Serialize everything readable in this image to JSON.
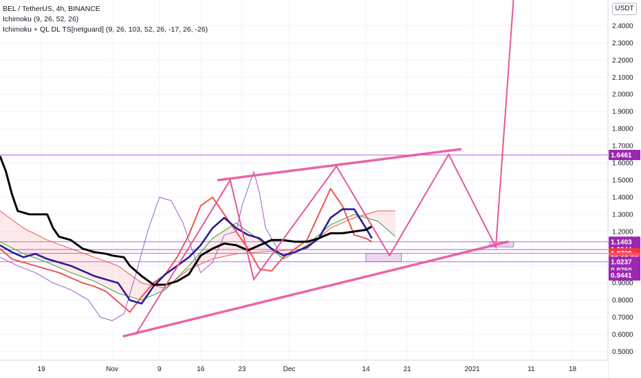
{
  "legend": {
    "symbol": "BEL / TetherUS, 4h, BINANCE",
    "indicator1": "Ichimoku (9, 26, 52, 26)",
    "indicator2": "Ichimoku + QL DL TS[netguard] (9, 26, 103, 52, 26, -17, 26, -26)"
  },
  "currency_label": "USDT",
  "colors": {
    "pattern_pink": "#e8559a",
    "level_purple": "#b46ad6",
    "tag_purple": "#9c27b0",
    "tag_red": "#f23645",
    "tag_orange": "#f7525f",
    "cloud_green": "#3a9a3a",
    "cloud_red": "#ef5350",
    "kijun_navy": "#2b1a99",
    "lagging_violet": "#9b59d0",
    "base_black": "#000000"
  },
  "chart_data": {
    "type": "line",
    "y_ticks": [
      "2.4000",
      "2.3000",
      "2.2000",
      "2.1000",
      "2.0000",
      "1.9000",
      "1.8000",
      "1.7000",
      "1.6000",
      "1.5000",
      "1.4000",
      "1.3000",
      "1.2000",
      "1.1000",
      "1.0000",
      "0.9000",
      "0.8000",
      "0.7000",
      "0.6000",
      "0.5000"
    ],
    "y_tick_values": [
      2.4,
      2.3,
      2.2,
      2.1,
      2.0,
      1.9,
      1.8,
      1.7,
      1.6,
      1.5,
      1.4,
      1.3,
      1.2,
      1.1,
      1.0,
      0.9,
      0.8,
      0.7,
      0.6,
      0.5
    ],
    "x_ticks": [
      "19",
      "Nov",
      "9",
      "16",
      "23",
      "Dec",
      "14",
      "21",
      "2021",
      "11",
      "18"
    ],
    "x_tick_days": [
      -12,
      0,
      8,
      15,
      22,
      30,
      43,
      50,
      61,
      71,
      78
    ],
    "ylim": [
      0.45,
      2.55
    ],
    "xlim": [
      -19,
      84
    ],
    "price_tags": [
      {
        "label": "1.6461",
        "value": 1.6461,
        "style": "purple"
      },
      {
        "label": "1.1403",
        "value": 1.1403,
        "style": "purple"
      },
      {
        "label": "1.0944",
        "value": 1.0944,
        "style": "purple"
      },
      {
        "label": "1.0729",
        "value": 1.0729,
        "style": "red"
      },
      {
        "label": "03:12:53",
        "value": 1.046,
        "style": "orange"
      },
      {
        "label": "1.0237",
        "value": 1.0237,
        "style": "purple"
      },
      {
        "label": "0.9750",
        "value": 0.975,
        "style": "purple"
      },
      {
        "label": "0.9441",
        "value": 0.9441,
        "style": "purple"
      }
    ],
    "horizontal_levels": [
      {
        "value": 1.6461,
        "start_day": -19
      },
      {
        "value": 1.1403,
        "start_day": -19
      },
      {
        "value": 1.0944,
        "start_day": -19
      },
      {
        "value": 1.0729,
        "start_day": -19
      },
      {
        "value": 1.0237,
        "start_day": -19
      }
    ],
    "pattern_path": [
      {
        "x": 4,
        "y": 0.6
      },
      {
        "x": 20,
        "y": 1.5
      },
      {
        "x": 24,
        "y": 0.92
      },
      {
        "x": 38,
        "y": 1.58
      },
      {
        "x": 47,
        "y": 1.06
      },
      {
        "x": 57,
        "y": 1.65
      },
      {
        "x": 65,
        "y": 1.11
      },
      {
        "x": 68,
        "y": 2.56
      }
    ],
    "channel_upper": [
      {
        "x": 18,
        "y": 1.5
      },
      {
        "x": 59,
        "y": 1.68
      }
    ],
    "channel_lower": [
      {
        "x": 2,
        "y": 0.59
      },
      {
        "x": 67,
        "y": 1.14
      }
    ],
    "target_boxes": [
      {
        "x1": 43,
        "x2": 49,
        "y_low": 1.025,
        "y_high": 1.072
      },
      {
        "x1": 64,
        "x2": 68,
        "y_low": 1.11,
        "y_high": 1.14
      }
    ],
    "series": [
      {
        "style": "base",
        "points": [
          [
            -19,
            1.64
          ],
          [
            -18,
            1.55
          ],
          [
            -17,
            1.42
          ],
          [
            -16,
            1.32
          ],
          [
            -14,
            1.3
          ],
          [
            -11,
            1.3
          ],
          [
            -10,
            1.22
          ],
          [
            -9,
            1.17
          ],
          [
            -7,
            1.15
          ],
          [
            -5,
            1.1
          ],
          [
            -3,
            1.08
          ],
          [
            -1,
            1.07
          ],
          [
            0,
            1.06
          ],
          [
            2,
            1.05
          ],
          [
            3,
            1.0
          ],
          [
            5,
            0.94
          ],
          [
            7,
            0.89
          ],
          [
            9,
            0.89
          ],
          [
            11,
            0.91
          ],
          [
            13,
            0.95
          ],
          [
            15,
            1.06
          ],
          [
            17,
            1.1
          ],
          [
            19,
            1.13
          ],
          [
            21,
            1.12
          ],
          [
            23,
            1.09
          ],
          [
            25,
            1.12
          ],
          [
            27,
            1.15
          ],
          [
            29,
            1.15
          ],
          [
            31,
            1.14
          ],
          [
            33,
            1.14
          ],
          [
            35,
            1.16
          ],
          [
            37,
            1.19
          ],
          [
            39,
            1.19
          ],
          [
            41,
            1.2
          ],
          [
            43,
            1.21
          ],
          [
            44,
            1.23
          ]
        ]
      },
      {
        "style": "kijun",
        "points": [
          [
            -19,
            1.12
          ],
          [
            -17,
            1.08
          ],
          [
            -15,
            1.05
          ],
          [
            -13,
            1.07
          ],
          [
            -11,
            1.04
          ],
          [
            -9,
            1.02
          ],
          [
            -7,
            1.0
          ],
          [
            -5,
            0.97
          ],
          [
            -3,
            0.94
          ],
          [
            -1,
            0.92
          ],
          [
            1,
            0.9
          ],
          [
            3,
            0.8
          ],
          [
            5,
            0.78
          ],
          [
            7,
            0.88
          ],
          [
            9,
            0.95
          ],
          [
            11,
            1.0
          ],
          [
            13,
            1.05
          ],
          [
            15,
            1.12
          ],
          [
            17,
            1.22
          ],
          [
            19,
            1.28
          ],
          [
            21,
            1.22
          ],
          [
            23,
            1.18
          ],
          [
            25,
            1.16
          ],
          [
            27,
            1.1
          ],
          [
            29,
            1.06
          ],
          [
            31,
            1.08
          ],
          [
            33,
            1.11
          ],
          [
            35,
            1.16
          ],
          [
            37,
            1.28
          ],
          [
            39,
            1.33
          ],
          [
            41,
            1.33
          ],
          [
            43,
            1.22
          ],
          [
            44,
            1.16
          ]
        ]
      },
      {
        "style": "tenkan",
        "points": [
          [
            -19,
            1.1
          ],
          [
            -17,
            1.04
          ],
          [
            -15,
            1.02
          ],
          [
            -13,
            1.0
          ],
          [
            -11,
            0.98
          ],
          [
            -9,
            0.96
          ],
          [
            -7,
            0.93
          ],
          [
            -5,
            0.9
          ],
          [
            -3,
            0.88
          ],
          [
            -1,
            0.85
          ],
          [
            1,
            0.79
          ],
          [
            3,
            0.73
          ],
          [
            5,
            0.82
          ],
          [
            7,
            0.9
          ],
          [
            9,
            0.95
          ],
          [
            11,
            1.05
          ],
          [
            13,
            1.18
          ],
          [
            15,
            1.35
          ],
          [
            17,
            1.4
          ],
          [
            19,
            1.3
          ],
          [
            21,
            1.2
          ],
          [
            23,
            1.1
          ],
          [
            25,
            0.98
          ],
          [
            27,
            0.97
          ],
          [
            29,
            1.05
          ],
          [
            31,
            1.1
          ],
          [
            33,
            1.15
          ],
          [
            35,
            1.3
          ],
          [
            37,
            1.45
          ],
          [
            39,
            1.35
          ],
          [
            41,
            1.18
          ],
          [
            43,
            1.16
          ],
          [
            44,
            1.14
          ]
        ]
      },
      {
        "style": "cloudA",
        "points": [
          [
            -19,
            1.14
          ],
          [
            -15,
            1.07
          ],
          [
            -11,
            1.02
          ],
          [
            -7,
            0.96
          ],
          [
            -3,
            0.91
          ],
          [
            1,
            0.84
          ],
          [
            5,
            0.8
          ],
          [
            9,
            0.86
          ],
          [
            13,
            1.0
          ],
          [
            17,
            1.16
          ],
          [
            21,
            1.25
          ],
          [
            25,
            1.15
          ],
          [
            29,
            1.04
          ],
          [
            33,
            1.12
          ],
          [
            37,
            1.24
          ],
          [
            41,
            1.3
          ],
          [
            45,
            1.26
          ],
          [
            48,
            1.17
          ]
        ]
      },
      {
        "style": "cloudB",
        "points": [
          [
            -19,
            1.32
          ],
          [
            -15,
            1.22
          ],
          [
            -11,
            1.15
          ],
          [
            -7,
            1.1
          ],
          [
            -3,
            1.05
          ],
          [
            1,
            1.0
          ],
          [
            5,
            0.9
          ],
          [
            9,
            0.87
          ],
          [
            13,
            0.98
          ],
          [
            17,
            1.04
          ],
          [
            21,
            1.07
          ],
          [
            25,
            1.08
          ],
          [
            29,
            1.09
          ],
          [
            33,
            1.1
          ],
          [
            37,
            1.22
          ],
          [
            41,
            1.28
          ],
          [
            45,
            1.32
          ],
          [
            48,
            1.32
          ]
        ]
      },
      {
        "style": "lagging",
        "points": [
          [
            -19,
            1.05
          ],
          [
            -16,
            1.0
          ],
          [
            -13,
            0.96
          ],
          [
            -10,
            0.9
          ],
          [
            -7,
            0.86
          ],
          [
            -4,
            0.8
          ],
          [
            -2,
            0.7
          ],
          [
            0,
            0.68
          ],
          [
            2,
            0.72
          ],
          [
            4,
            0.95
          ],
          [
            6,
            1.2
          ],
          [
            8,
            1.4
          ],
          [
            10,
            1.38
          ],
          [
            12,
            1.25
          ],
          [
            14,
            1.05
          ],
          [
            15,
            0.96
          ],
          [
            17,
            1.02
          ],
          [
            19,
            1.18
          ],
          [
            21,
            1.2
          ],
          [
            22,
            1.35
          ],
          [
            24,
            1.55
          ],
          [
            25,
            1.42
          ],
          [
            26,
            1.22
          ],
          [
            28,
            1.1
          ]
        ]
      }
    ]
  }
}
